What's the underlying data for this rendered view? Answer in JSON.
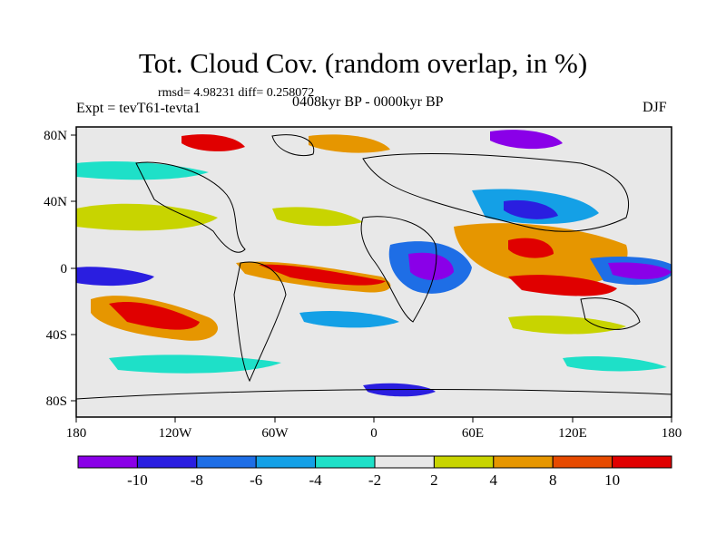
{
  "title": "Tot. Cloud Cov. (random overlap, in %)",
  "stats": "rmsd= 4.98231  diff= 0.258072",
  "experiment": "Expt = tevT61-tevta1",
  "period": "0408kyr BP - 0000kyr BP",
  "season": "DJF",
  "map": {
    "lon_ticks": [
      "180",
      "120W",
      "60W",
      "0",
      "60E",
      "120E",
      "180"
    ],
    "lat_ticks": [
      "80N",
      "40N",
      "0",
      "40S",
      "80S"
    ]
  },
  "colorbar": {
    "labels": [
      "-10",
      "-8",
      "-6",
      "-4",
      "-2",
      "2",
      "4",
      "8",
      "10"
    ],
    "colors": [
      "#8a00e8",
      "#2a1ee0",
      "#1e6ee6",
      "#14a0e6",
      "#1ee0c8",
      "#e8e8e8",
      "#c8d400",
      "#e69600",
      "#e64a00",
      "#e00000"
    ]
  }
}
